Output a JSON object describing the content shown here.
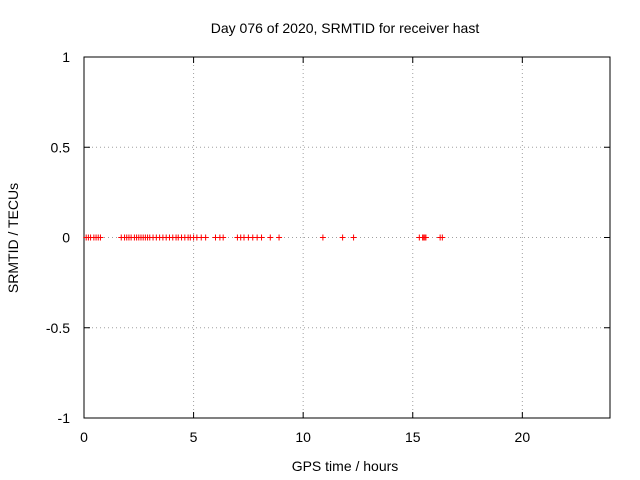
{
  "chart_data": {
    "type": "scatter",
    "title": "Day 076 of 2020, SRMTID for receiver hast",
    "xlabel": "GPS time / hours",
    "ylabel": "SRMTID / TECUs",
    "xlim": [
      0,
      24
    ],
    "ylim": [
      -1,
      1
    ],
    "x_ticks": [
      0,
      5,
      10,
      15,
      20
    ],
    "x_tick_labels": [
      "0",
      "5",
      "10",
      "15",
      "20"
    ],
    "y_ticks": [
      -1,
      -0.5,
      0,
      0.5,
      1
    ],
    "y_tick_labels": [
      "-1",
      "-0.5",
      "0",
      "0.5",
      "1"
    ],
    "grid": true,
    "marker": "+",
    "series": [
      {
        "name": "SRMTID",
        "color": "#ff0000",
        "x": [
          0.1,
          0.2,
          0.3,
          0.45,
          0.55,
          0.65,
          0.75,
          1.7,
          1.85,
          1.95,
          2.05,
          2.15,
          2.3,
          2.4,
          2.5,
          2.6,
          2.7,
          2.8,
          2.9,
          3.0,
          3.15,
          3.3,
          3.45,
          3.6,
          3.75,
          3.9,
          4.05,
          4.2,
          4.3,
          4.45,
          4.6,
          4.75,
          4.85,
          5.0,
          5.15,
          5.35,
          5.55,
          6.0,
          6.2,
          6.35,
          7.0,
          7.15,
          7.3,
          7.5,
          7.7,
          7.9,
          8.1,
          8.5,
          8.9,
          10.9,
          11.8,
          12.3,
          15.3,
          15.45,
          15.5,
          15.55,
          15.6,
          16.25,
          16.35
        ],
        "y": [
          0,
          0,
          0,
          0,
          0,
          0,
          0,
          0,
          0,
          0,
          0,
          0,
          0,
          0,
          0,
          0,
          0,
          0,
          0,
          0,
          0,
          0,
          0,
          0,
          0,
          0,
          0,
          0,
          0,
          0,
          0,
          0,
          0,
          0,
          0,
          0,
          0,
          0,
          0,
          0,
          0,
          0,
          0,
          0,
          0,
          0,
          0,
          0,
          0,
          0,
          0,
          0,
          0,
          0,
          0,
          0,
          0,
          0,
          0
        ]
      }
    ]
  }
}
